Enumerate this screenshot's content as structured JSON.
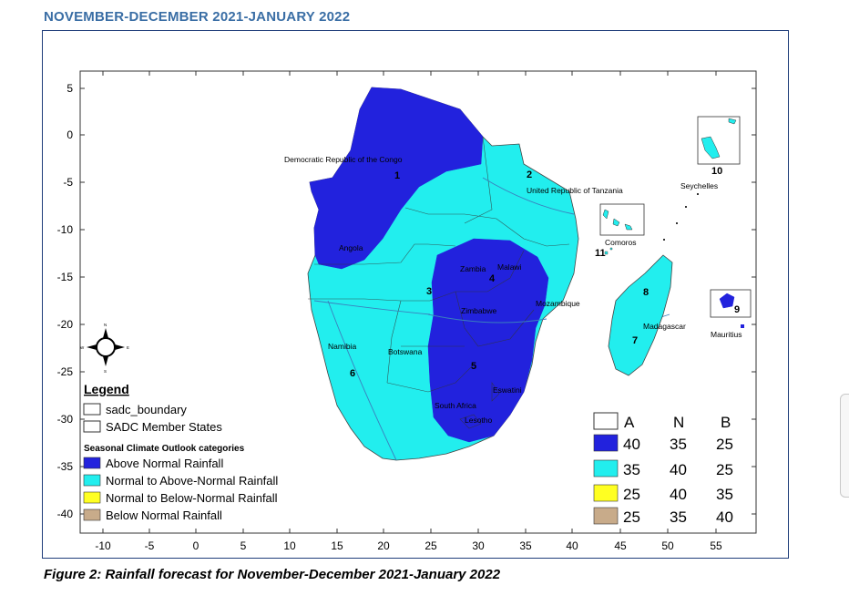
{
  "title": "NOVEMBER-DECEMBER 2021-JANUARY 2022",
  "caption": "Figure 2: Rainfall forecast for November-December 2021-January 2022",
  "colors": {
    "above_normal": "#2222dd",
    "normal_to_above": "#22eeee",
    "normal_to_below": "#ffff22",
    "below_normal": "#c8ab8a",
    "frame": "#1f3d7a",
    "title": "#3a6ea5"
  },
  "axes": {
    "x_ticks": [
      "-10",
      "-5",
      "0",
      "5",
      "10",
      "15",
      "20",
      "25",
      "30",
      "35",
      "40",
      "45",
      "50",
      "55"
    ],
    "y_ticks": [
      "5",
      "0",
      "-5",
      "-10",
      "-15",
      "-20",
      "-25",
      "-30",
      "-35",
      "-40"
    ]
  },
  "countries": {
    "drc": "Democratic Republic of the Congo",
    "tanzania": "United Republic of Tanzania",
    "seychelles": "Seychelles",
    "comoros": "Comoros",
    "angola": "Angola",
    "zambia": "Zambia",
    "malawi": "Malawi",
    "mozambique": "Mozambique",
    "zimbabwe": "Zimbabwe",
    "madagascar": "Madagascar",
    "mauritius": "Mauritius",
    "namibia": "Namibia",
    "botswana": "Botswana",
    "eswatini": "Eswatini",
    "south_africa": "South Africa",
    "lesotho": "Lesotho"
  },
  "zones": [
    "1",
    "2",
    "3",
    "4",
    "5",
    "6",
    "7",
    "8",
    "9",
    "10",
    "11"
  ],
  "legend": {
    "heading": "Legend",
    "boundary": "sadc_boundary",
    "member_states": "SADC Member States",
    "categories_heading": "Seasonal Climate Outlook categories",
    "categories": [
      {
        "label": "Above Normal Rainfall",
        "color": "#2222dd"
      },
      {
        "label": "Normal to Above-Normal Rainfall",
        "color": "#22eeee"
      },
      {
        "label": "Normal to Below-Normal Rainfall",
        "color": "#ffff22"
      },
      {
        "label": "Below Normal Rainfall",
        "color": "#c8ab8a"
      }
    ]
  },
  "probability_table": {
    "headers": [
      "A",
      "N",
      "B"
    ],
    "rows": [
      {
        "color": "#2222dd",
        "values": [
          "40",
          "35",
          "25"
        ]
      },
      {
        "color": "#22eeee",
        "values": [
          "35",
          "40",
          "25"
        ]
      },
      {
        "color": "#ffff22",
        "values": [
          "25",
          "40",
          "35"
        ]
      },
      {
        "color": "#c8ab8a",
        "values": [
          "25",
          "35",
          "40"
        ]
      }
    ]
  },
  "compass": {
    "n": "N",
    "s": "S",
    "e": "E",
    "w": "W"
  }
}
